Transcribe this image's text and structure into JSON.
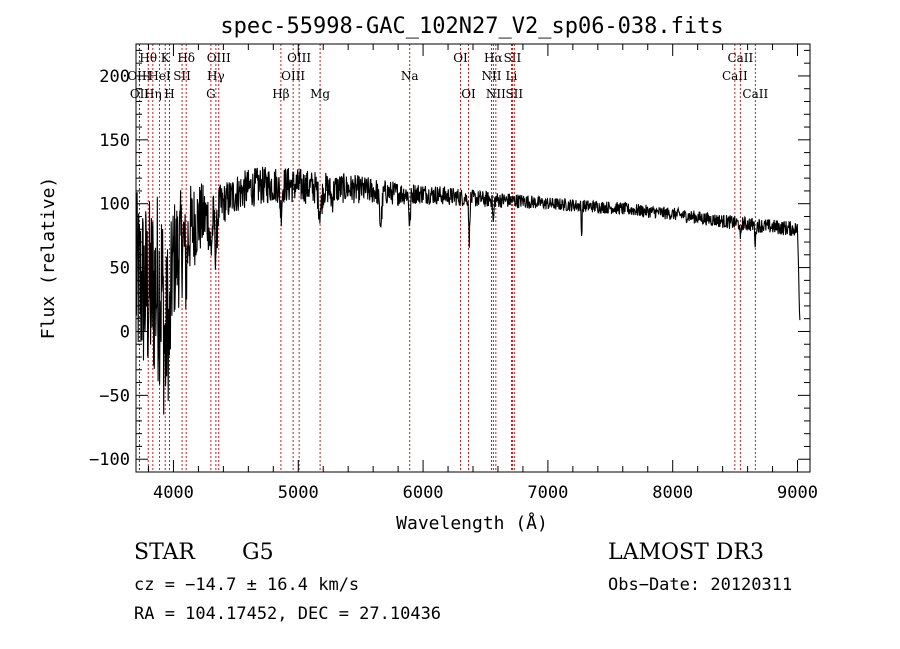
{
  "chart_data": {
    "type": "line",
    "title": "spec-55998-GAC_102N27_V2_sp06-038.fits",
    "xlabel": "Wavelength (Å)",
    "ylabel": "Flux (relative)",
    "xlim": [
      3700,
      9100
    ],
    "ylim": [
      -110,
      225
    ],
    "xticks": [
      4000,
      5000,
      6000,
      7000,
      8000,
      9000
    ],
    "yticks": [
      -100,
      -50,
      0,
      50,
      100,
      150,
      200
    ],
    "grid": false,
    "series": [
      {
        "name": "flux",
        "continuum": [
          [
            3700,
            40
          ],
          [
            3800,
            30
          ],
          [
            3900,
            38
          ],
          [
            4000,
            55
          ],
          [
            4100,
            75
          ],
          [
            4200,
            88
          ],
          [
            4300,
            90
          ],
          [
            4400,
            100
          ],
          [
            4500,
            108
          ],
          [
            4600,
            112
          ],
          [
            4700,
            114
          ],
          [
            4800,
            115
          ],
          [
            4900,
            115
          ],
          [
            5000,
            114
          ],
          [
            5200,
            112
          ],
          [
            5400,
            112
          ],
          [
            5600,
            110
          ],
          [
            5800,
            108
          ],
          [
            6000,
            108
          ],
          [
            6200,
            106
          ],
          [
            6400,
            104
          ],
          [
            6600,
            103
          ],
          [
            6800,
            102
          ],
          [
            7000,
            100
          ],
          [
            7500,
            97
          ],
          [
            8000,
            92
          ],
          [
            8500,
            85
          ],
          [
            9000,
            80
          ],
          [
            9020,
            5
          ]
        ],
        "absorption": [
          [
            3934,
            60,
            12
          ],
          [
            3968,
            55,
            10
          ],
          [
            4102,
            30,
            8
          ],
          [
            4300,
            25,
            10
          ],
          [
            4340,
            30,
            8
          ],
          [
            4861,
            20,
            8
          ],
          [
            5175,
            18,
            12
          ],
          [
            5270,
            8,
            10
          ],
          [
            5660,
            25,
            10
          ],
          [
            5893,
            25,
            6
          ],
          [
            6370,
            35,
            4
          ],
          [
            6563,
            18,
            5
          ],
          [
            7270,
            25,
            3
          ],
          [
            8542,
            15,
            4
          ],
          [
            8662,
            15,
            4
          ]
        ],
        "noise": [
          [
            3700,
            70
          ],
          [
            3900,
            80
          ],
          [
            4000,
            50
          ],
          [
            4200,
            30
          ],
          [
            4400,
            16
          ],
          [
            5000,
            14
          ],
          [
            6000,
            8
          ],
          [
            7000,
            5
          ],
          [
            8000,
            5
          ],
          [
            9000,
            6
          ]
        ]
      }
    ],
    "lines": [
      {
        "label": "Hθ",
        "x": 3798,
        "row": 0,
        "color": "#cc0000"
      },
      {
        "label": "OII",
        "x": 3728,
        "row": 2,
        "color": "#cc0000"
      },
      {
        "label": "OIII",
        "x": 3727,
        "row": 1,
        "color": "#cc0000"
      },
      {
        "label": "Hη",
        "x": 3835,
        "row": 2,
        "color": "#cc0000"
      },
      {
        "label": "HeI",
        "x": 3889,
        "row": 1,
        "color": "#cc0000"
      },
      {
        "label": "K",
        "x": 3934,
        "row": 0,
        "color": "#cc0000"
      },
      {
        "label": "H",
        "x": 3968,
        "row": 2,
        "color": "#cc0000"
      },
      {
        "label": "SII",
        "x": 4069,
        "row": 1,
        "color": "#cc0000"
      },
      {
        "label": "Hδ",
        "x": 4102,
        "row": 0,
        "color": "#cc0000"
      },
      {
        "label": "G",
        "x": 4300,
        "row": 2,
        "color": "#cc0000"
      },
      {
        "label": "Hγ",
        "x": 4340,
        "row": 1,
        "color": "#cc0000"
      },
      {
        "label": "OIII",
        "x": 4363,
        "row": 0,
        "color": "#cc0000"
      },
      {
        "label": "Hβ",
        "x": 4861,
        "row": 2,
        "color": "#cc0000"
      },
      {
        "label": "OIII",
        "x": 4959,
        "row": 1,
        "color": "#cc0000"
      },
      {
        "label": "OIII",
        "x": 5007,
        "row": 0,
        "color": "#cc0000"
      },
      {
        "label": "Mg",
        "x": 5175,
        "row": 2,
        "color": "#cc0000"
      },
      {
        "label": "Na",
        "x": 5893,
        "row": 1,
        "color": "#cc0000"
      },
      {
        "label": "OI",
        "x": 6300,
        "row": 0,
        "color": "#cc0000"
      },
      {
        "label": "OI",
        "x": 6364,
        "row": 2,
        "color": "#cc0000"
      },
      {
        "label": "NII",
        "x": 6548,
        "row": 1,
        "color": "#cc0000"
      },
      {
        "label": "Hα",
        "x": 6563,
        "row": 0,
        "color": "#cc0000"
      },
      {
        "label": "NII",
        "x": 6583,
        "row": 2,
        "color": "#cc0000"
      },
      {
        "label": "Li",
        "x": 6708,
        "row": 1,
        "color": "#cc0000"
      },
      {
        "label": "SII",
        "x": 6716,
        "row": 0,
        "color": "#cc0000"
      },
      {
        "label": "SII",
        "x": 6731,
        "row": 2,
        "color": "#cc0000"
      },
      {
        "label": "CaII",
        "x": 8498,
        "row": 1,
        "color": "#cc0000"
      },
      {
        "label": "CaII",
        "x": 8542,
        "row": 0,
        "color": "#cc0000"
      },
      {
        "label": "CaII",
        "x": 8662,
        "row": 2,
        "color": "#cc0000"
      }
    ]
  },
  "info": {
    "object_type": "STAR",
    "subclass": "G5",
    "survey": "LAMOST DR3",
    "redshift": "cz = −14.7 ± 16.4 km/s",
    "obs_date": "Obs−Date: 20120311",
    "coords": "RA = 104.17452, DEC =  27.10436"
  }
}
